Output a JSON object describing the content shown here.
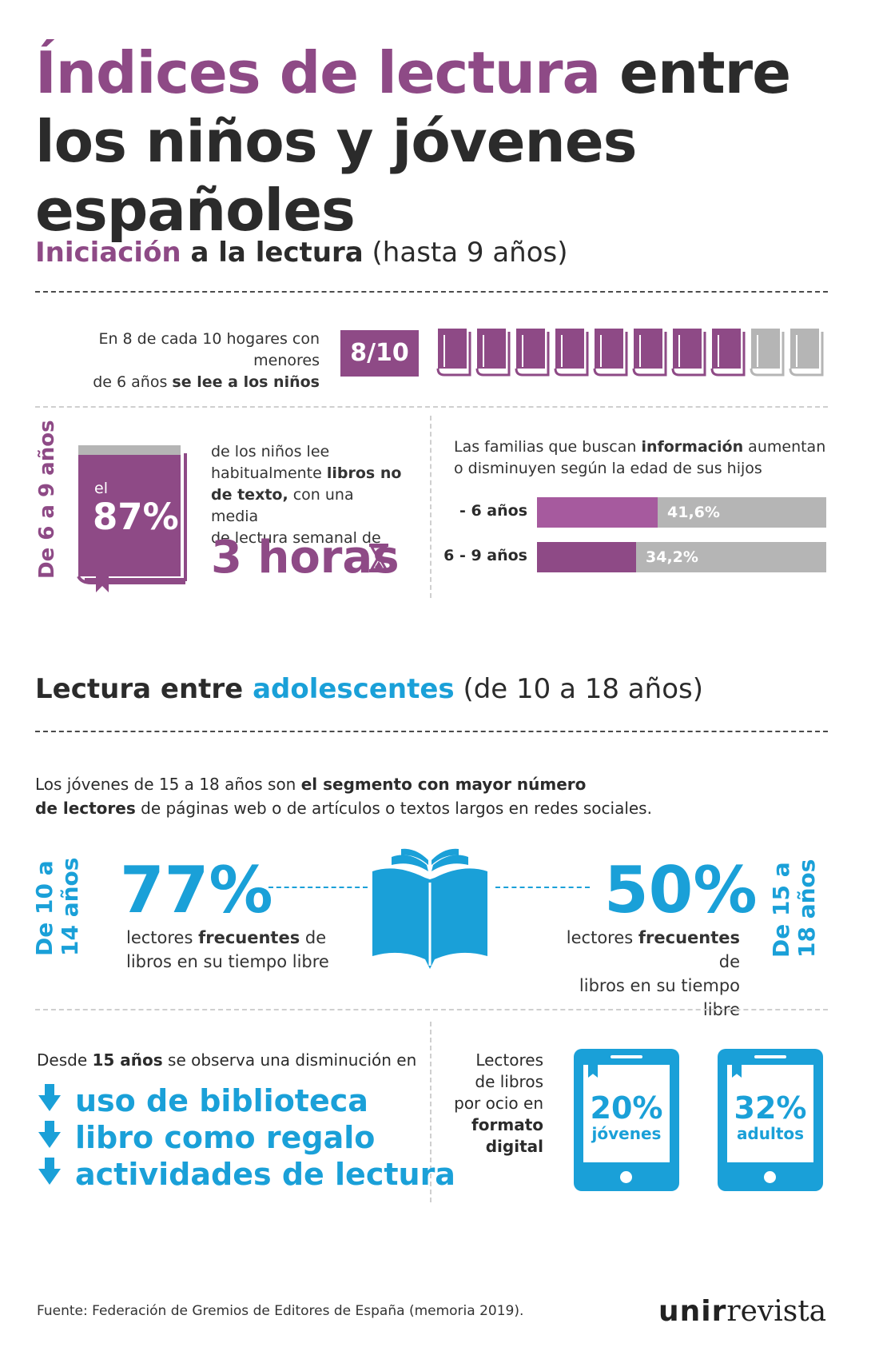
{
  "title": {
    "highlight": "Índices de lectura",
    "line1_rest": " entre",
    "line2": "los niños y jóvenes españoles"
  },
  "section1": {
    "highlight": "Iniciación",
    "bold_rest": " a la lectura",
    "rest": " (hasta 9 años)"
  },
  "households": {
    "line1": "En 8 de cada 10 hogares con menores",
    "line2_plain": "de 6 años ",
    "line2_bold": "se lee a los niños",
    "ratio": "8/10",
    "filled_books": 8,
    "total_books": 10
  },
  "age6to9": {
    "vertical_label": "De 6 a 9 años",
    "el": "el",
    "pct": "87%",
    "text_a": "de los niños lee",
    "text_b_plain": "habitualmente ",
    "text_b_bold": "libros no",
    "text_c_bold": "de texto,",
    "text_c_plain": " con una media",
    "text_d": "de lectura semanal de",
    "hours": "3 horas"
  },
  "families": {
    "line1_plain": "Las familias que buscan ",
    "line1_bold": "información",
    "line1_rest": " aumentan",
    "line2": "o disminuyen según la edad de sus hijos",
    "bars": [
      {
        "label": "- 6 años",
        "value": 41.6,
        "display": "41,6%",
        "color": "#a65a9e"
      },
      {
        "label": "6 - 9 años",
        "value": 34.2,
        "display": "34,2%",
        "color": "#8e4a86"
      }
    ]
  },
  "section2": {
    "bold": "Lectura entre ",
    "highlight": "adolescentes",
    "rest": " (de 10 a 18 años)"
  },
  "teens_intro": {
    "line1_plain": "Los jóvenes de 15 a 18 años son ",
    "line1_bold": "el segmento con mayor número",
    "line2_bold": "de lectores",
    "line2_plain": " de páginas web o de artículos o textos largos en redes sociales."
  },
  "teens_left": {
    "label_line1": "De 10 a",
    "label_line2": "14 años",
    "pct": "77%",
    "desc_a": "lectores ",
    "desc_b": "frecuentes",
    "desc_c": " de",
    "desc_d": "libros en su tiempo libre"
  },
  "teens_right": {
    "label_line1": "De 15 a",
    "label_line2": "18 años",
    "pct": "50%",
    "desc_a": "lectores ",
    "desc_b": "frecuentes",
    "desc_c": " de",
    "desc_d": "libros en su tiempo libre"
  },
  "decrease": {
    "intro_plain": "Desde ",
    "intro_bold": "15 años",
    "intro_rest": " se observa una disminución en",
    "items": [
      "uso de biblioteca",
      "libro como regalo",
      "actividades de lectura"
    ]
  },
  "digital": {
    "lines": [
      "Lectores",
      "de libros",
      "por ocio en",
      "formato",
      "digital"
    ],
    "tablets": [
      {
        "pct": "20%",
        "label": "jóvenes"
      },
      {
        "pct": "32%",
        "label": "adultos"
      }
    ]
  },
  "footer": {
    "source": "Fuente: Federación de Gremios de Editores de España (memoria 2019).",
    "logo_bold": "unir",
    "logo_rest": "revista"
  },
  "colors": {
    "purple": "#8e4a86",
    "blue": "#1aa0d8",
    "gray": "#b5b5b5"
  }
}
